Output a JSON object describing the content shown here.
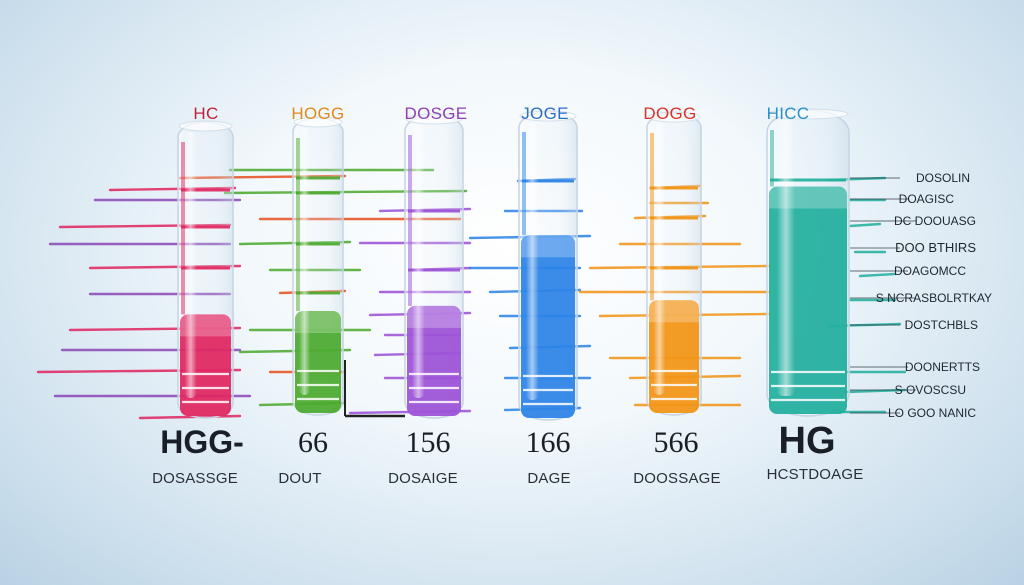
{
  "tubes": [
    {
      "cap_label": "HC",
      "color": "#e0245e",
      "fill_level": 0.35,
      "big_label": "HGG-",
      "sub_label": "DOSASSGE"
    },
    {
      "cap_label": "HOGG",
      "color": "#4aa92c",
      "fill_level": 0.35,
      "big_label": "66",
      "sub_label": "DOUT"
    },
    {
      "cap_label": "DOSGE",
      "color": "#9b4fd6",
      "fill_level": 0.37,
      "big_label": "156",
      "sub_label": "DOSAIGE"
    },
    {
      "cap_label": "JOGE",
      "color": "#2a82e6",
      "fill_level": 0.6,
      "big_label": "166",
      "sub_label": "DAGE"
    },
    {
      "cap_label": "DOGG",
      "color": "#f29212",
      "fill_level": 0.38,
      "big_label": "566",
      "sub_label": "DOOSSAGE"
    },
    {
      "cap_label": "HICC",
      "color": "#1fae9c",
      "fill_level": 0.75,
      "big_label": "HG",
      "sub_label": "HCSTDOAGE"
    }
  ],
  "side_labels": [
    "DOSOLIN",
    "DOAGISC",
    "DC DOOUASG",
    "DOO BTHIRS",
    "DOAGOMCC",
    "S NCRASBOLRTKAY",
    "DOSTCHBLS",
    "DOONERTTS",
    "S OVOSCSU",
    "LO GOO NANIC"
  ],
  "colors": {
    "cap_label_colors": [
      "#c21f3a",
      "#e08a1c",
      "#8e3fb3",
      "#2a6fc4",
      "#d8342a",
      "#2a8fc8"
    ]
  }
}
